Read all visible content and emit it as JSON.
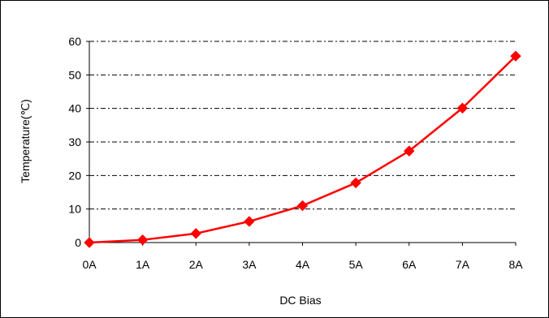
{
  "chart_data": {
    "type": "line",
    "title": "",
    "xlabel": "DC Bias",
    "ylabel": "Temperature(℃)",
    "categories": [
      "0A",
      "1A",
      "2A",
      "3A",
      "4A",
      "5A",
      "6A",
      "7A",
      "8A"
    ],
    "series": [
      {
        "values": [
          0,
          0.8,
          2.7,
          6.3,
          11,
          17.8,
          27.3,
          40.1,
          55.6
        ],
        "color": "#ff0000",
        "marker": "diamond"
      }
    ],
    "yticks": [
      "0",
      "10",
      "20",
      "30",
      "40",
      "50",
      "60"
    ],
    "ylim": [
      0,
      60
    ],
    "grid": "horizontal dash-dot",
    "legend": "none"
  }
}
